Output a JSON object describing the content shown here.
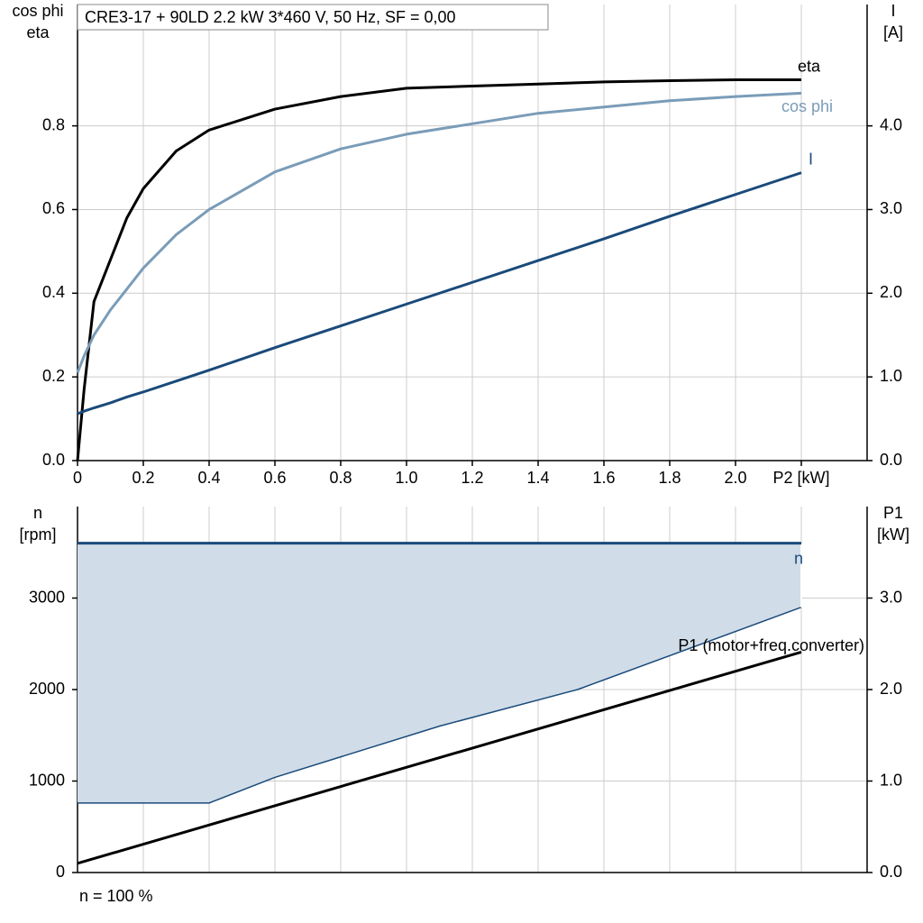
{
  "chart_data": [
    {
      "type": "line",
      "title": "CRE3-17 + 90LD   2.2 kW   3*460 V, 50 Hz, SF = 0,00",
      "ylabel": [
        "cos phi",
        "eta"
      ],
      "y2label": [
        "I",
        "[A]"
      ],
      "x": [
        0,
        0.02,
        0.05,
        0.1,
        0.15,
        0.2,
        0.3,
        0.4,
        0.6,
        0.8,
        1.0,
        1.2,
        1.4,
        1.6,
        1.8,
        2.0,
        2.2
      ],
      "xlim": [
        0,
        2.4
      ],
      "xticks": [
        0,
        0.2,
        0.4,
        0.6,
        0.8,
        {
          "value": 1,
          "label": "1.0"
        },
        1.2,
        1.4,
        1.6,
        1.8,
        {
          "value": 2,
          "label": "2.0"
        },
        {
          "value": 2.2,
          "label": "P2 [kW]"
        }
      ],
      "ylim": [
        0,
        1.09
      ],
      "yticks": [
        {
          "value": 0,
          "label": "0.0"
        },
        0.2,
        0.4,
        0.6,
        0.8
      ],
      "y2lim": [
        0,
        5.45
      ],
      "y2ticks": [
        {
          "value": 0,
          "label": "0.0"
        },
        {
          "value": 1,
          "label": "1.0"
        },
        {
          "value": 2,
          "label": "2.0"
        },
        {
          "value": 3,
          "label": "3.0"
        },
        {
          "value": 4,
          "label": "4.0"
        }
      ],
      "grid": true,
      "series": [
        {
          "name": "eta",
          "color": "#000000",
          "values": [
            0,
            0.17,
            0.38,
            0.48,
            0.58,
            0.65,
            0.74,
            0.79,
            0.84,
            0.87,
            0.89,
            0.895,
            0.9,
            0.905,
            0.908,
            0.91,
            0.91
          ]
        },
        {
          "name": "cos phi",
          "color": "#7a9cb8",
          "values": [
            0.21,
            0.25,
            0.3,
            0.36,
            0.41,
            0.46,
            0.54,
            0.6,
            0.69,
            0.745,
            0.78,
            0.805,
            0.83,
            0.845,
            0.86,
            0.87,
            0.878
          ]
        },
        {
          "name": "I",
          "color": "#1a4a7a",
          "axis": "y2",
          "values": [
            0.56,
            0.59,
            0.63,
            0.69,
            0.76,
            0.82,
            0.95,
            1.08,
            1.35,
            1.61,
            1.87,
            2.13,
            2.39,
            2.65,
            2.92,
            3.18,
            3.44
          ]
        }
      ]
    },
    {
      "type": "line",
      "ylabel": [
        "n",
        "[rpm]"
      ],
      "y2label": [
        "P1",
        "[kW]"
      ],
      "note": "n = 100 %",
      "xlim": [
        0,
        2.4
      ],
      "ylim": [
        0,
        4000
      ],
      "yticks": [
        0,
        1000,
        2000,
        3000
      ],
      "y2lim": [
        0,
        4.0
      ],
      "y2ticks": [
        {
          "value": 0,
          "label": "0.0"
        },
        {
          "value": 1,
          "label": "1.0"
        },
        {
          "value": 2,
          "label": "2.0"
        },
        {
          "value": 3,
          "label": "3.0"
        }
      ],
      "grid": true,
      "band_color": "#d0dce8",
      "min_speed": {
        "color": "#1a4a7a",
        "x": [
          0,
          0.4,
          0.6,
          1.1,
          1.52,
          2.2
        ],
        "values": [
          760,
          760,
          1040,
          1600,
          2000,
          2900
        ]
      },
      "series": [
        {
          "name": "n",
          "color": "#1a4a7a",
          "x": [
            0,
            2.2
          ],
          "values": [
            3600,
            3600
          ]
        },
        {
          "name": "P1 (motor+freq.converter)",
          "color": "#000000",
          "axis": "y2",
          "x": [
            0,
            2.2
          ],
          "values": [
            0.1,
            2.41
          ]
        }
      ]
    }
  ]
}
